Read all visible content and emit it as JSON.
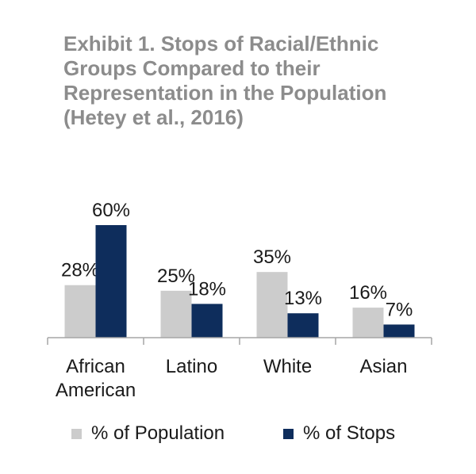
{
  "title": "Exhibit 1.  Stops of Racial/Ethnic\nGroups Compared to their\nRepresentation in the Population\n(Hetey et al., 2016)",
  "chart_data": {
    "type": "bar",
    "categories": [
      [
        "African",
        "American"
      ],
      [
        "Latino"
      ],
      [
        "White"
      ],
      [
        "Asian"
      ]
    ],
    "series": [
      {
        "name": "% of Population",
        "values": [
          28,
          25,
          35,
          16
        ],
        "labels": [
          "28%",
          "25%",
          "35%",
          "16%"
        ],
        "color": "#cccccc"
      },
      {
        "name": "% of Stops",
        "values": [
          60,
          18,
          13,
          7
        ],
        "labels": [
          "60%",
          "18%",
          "13%",
          "7%"
        ],
        "color": "#0e2d5c"
      }
    ],
    "ylim": [
      0,
      60
    ],
    "grid": false,
    "legend": "bottom"
  },
  "colors": {
    "title": "#8c8c8c",
    "axis": "#a6a6a6",
    "text": "#1a1a1a"
  }
}
